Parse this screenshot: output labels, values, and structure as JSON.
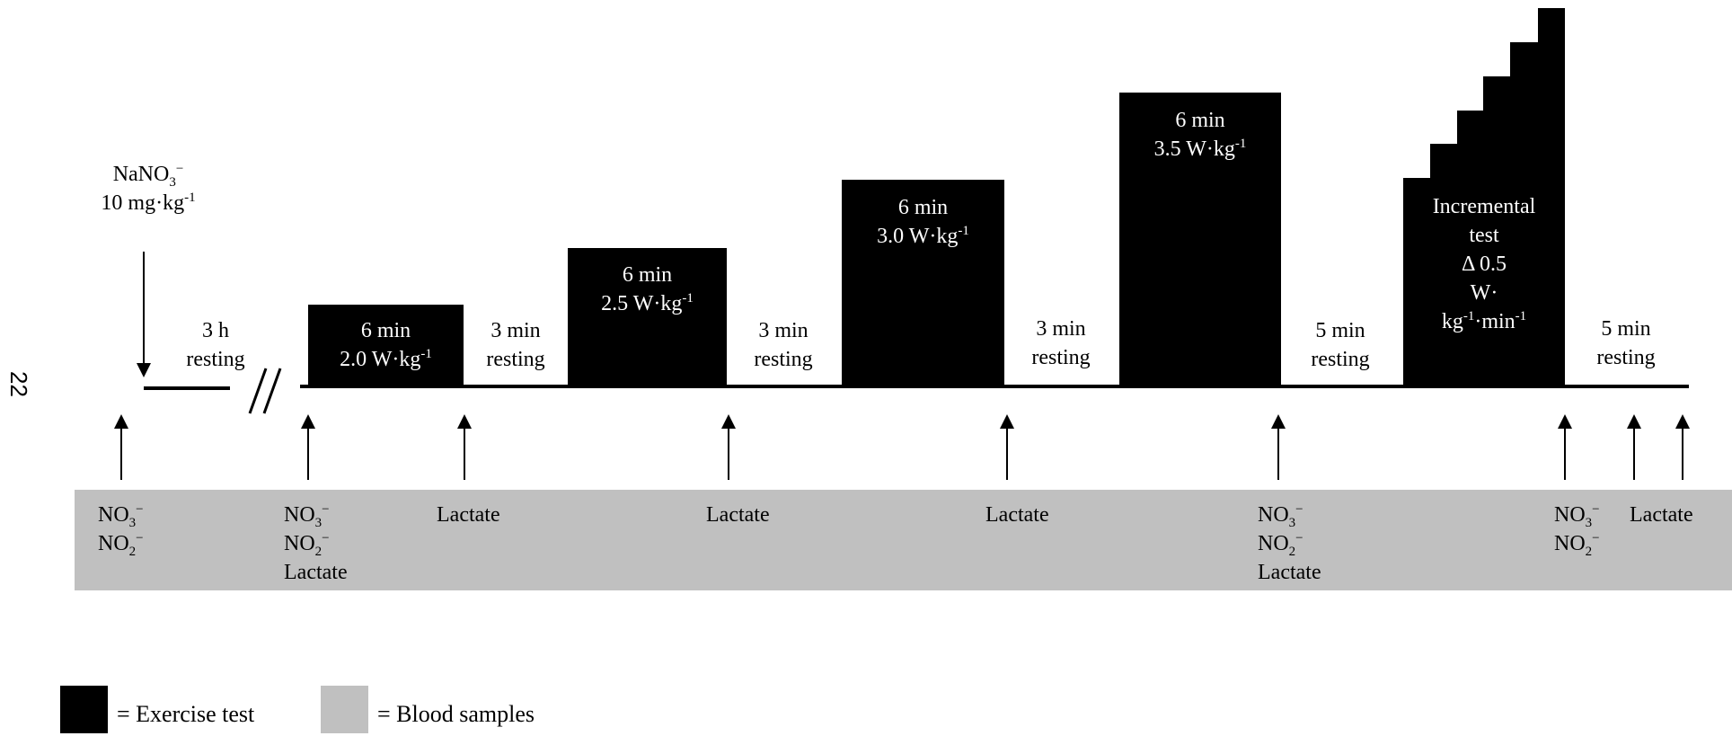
{
  "page_number": "22",
  "dose": {
    "compound": "NaNO",
    "sub": "3",
    "sup": "−",
    "amount": "10 mg·kg",
    "amount_sup": "-1"
  },
  "rest0": {
    "line1": "3 h",
    "line2": "resting"
  },
  "stages": [
    {
      "line1": "6 min",
      "line2": "2.0 W·kg",
      "sup": "-1"
    },
    {
      "line1": "6 min",
      "line2": "2.5 W·kg",
      "sup": "-1"
    },
    {
      "line1": "6 min",
      "line2": "3.0 W·kg",
      "sup": "-1"
    },
    {
      "line1": "6 min",
      "line2": "3.5 W·kg",
      "sup": "-1"
    }
  ],
  "incremental": {
    "line1": "Incremental",
    "line2": "test",
    "line3": "Δ 0.5",
    "line4": "W·",
    "line5a": "kg",
    "sup5a": "-1",
    "line5b": "·min",
    "sup5b": "-1"
  },
  "rests": [
    {
      "line1": "3 min",
      "line2": "resting"
    },
    {
      "line1": "3 min",
      "line2": "resting"
    },
    {
      "line1": "3 min",
      "line2": "resting"
    },
    {
      "line1": "5 min",
      "line2": "resting"
    },
    {
      "line1": "5 min",
      "line2": "resting"
    }
  ],
  "samples": {
    "s1": {
      "a": "NO",
      "a_sub": "3",
      "a_sup": "−",
      "b": "NO",
      "b_sub": "2",
      "b_sup": "−"
    },
    "s2": {
      "a": "NO",
      "a_sub": "3",
      "a_sup": "−",
      "b": "NO",
      "b_sub": "2",
      "b_sup": "−",
      "c": "Lactate"
    },
    "s3": "Lactate",
    "s4": "Lactate",
    "s5": "Lactate",
    "s6": {
      "a": "NO",
      "a_sub": "3",
      "a_sup": "−",
      "b": "NO",
      "b_sub": "2",
      "b_sup": "−",
      "c": "Lactate"
    },
    "s7": {
      "a": "NO",
      "a_sub": "3",
      "a_sup": "−",
      "b": "NO",
      "b_sub": "2",
      "b_sup": "−"
    },
    "s8": "Lactate"
  },
  "legend": {
    "exercise": "= Exercise test",
    "blood": "= Blood samples"
  },
  "colors": {
    "exercise": "#000000",
    "blood": "#c0c0c0"
  }
}
